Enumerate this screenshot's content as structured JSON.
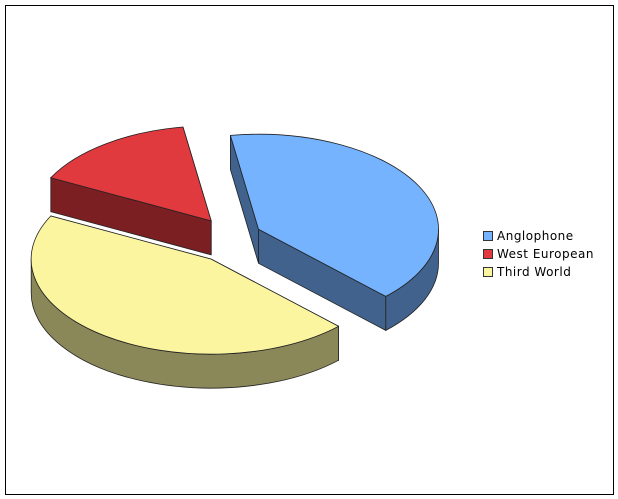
{
  "chart_data": {
    "type": "pie",
    "style": "3d-exploded",
    "title": "",
    "slices": [
      {
        "label": "Anglophone",
        "value": 40,
        "color": "#75b3ff"
      },
      {
        "label": "West European",
        "value": 15,
        "color": "#e0393e"
      },
      {
        "label": "Third World",
        "value": 45,
        "color": "#fbf5a0"
      }
    ],
    "legend": {
      "position": "right"
    }
  }
}
